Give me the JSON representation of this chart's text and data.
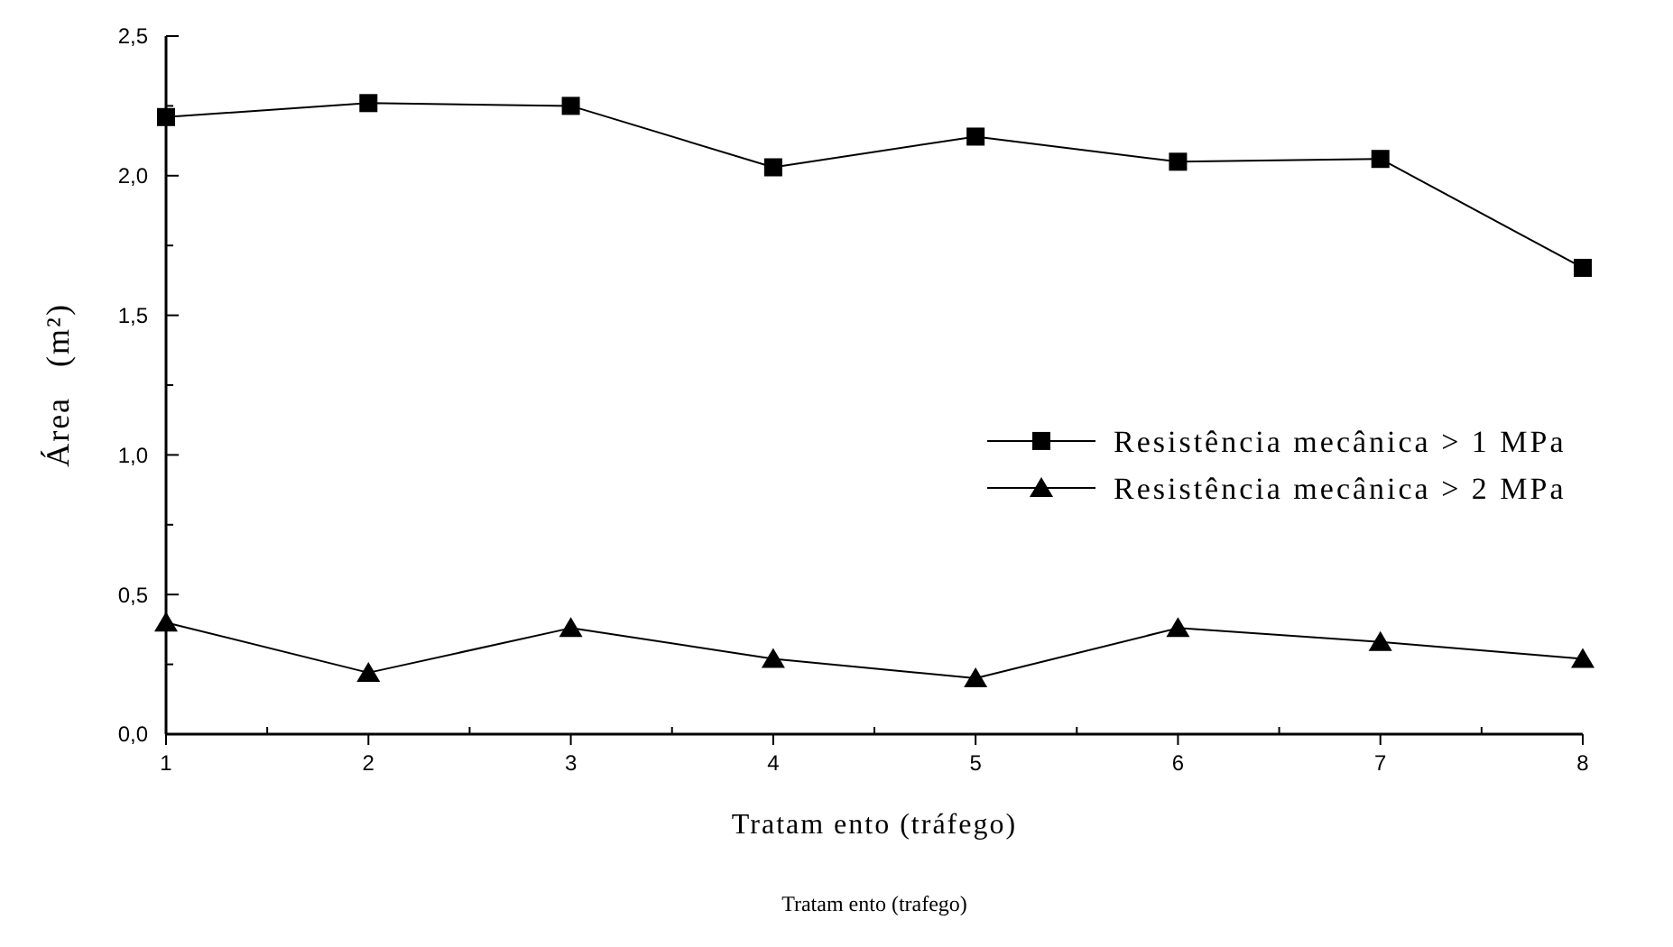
{
  "chart_data": {
    "type": "line",
    "xlabel": "Tratam ento (tráfego)",
    "ylabel": "Área   (m²)",
    "x": [
      1,
      2,
      3,
      4,
      5,
      6,
      7,
      8
    ],
    "series": [
      {
        "name": "Resistência mecânica > 1 MPa",
        "color": "#000000",
        "marker": "square",
        "values": [
          2.21,
          2.26,
          2.25,
          2.03,
          2.14,
          2.05,
          2.06,
          1.67
        ]
      },
      {
        "name": "Resistência mecânica > 2 MPa",
        "color": "#000000",
        "marker": "triangle",
        "values": [
          0.4,
          0.22,
          0.38,
          0.27,
          0.2,
          0.38,
          0.33,
          0.27
        ]
      }
    ],
    "xlim": [
      1,
      8
    ],
    "xticks": [
      1,
      2,
      3,
      4,
      5,
      6,
      7,
      8
    ],
    "ylim": [
      0,
      2.5
    ],
    "yticks": [
      {
        "value": 0,
        "label": "0,0"
      },
      {
        "value": 0.5,
        "label": "0,5"
      },
      {
        "value": 1,
        "label": "1,0"
      },
      {
        "value": 1.5,
        "label": "1,5"
      },
      {
        "value": 2,
        "label": "2,0"
      },
      {
        "value": 2.5,
        "label": "2,5"
      }
    ],
    "grid": false,
    "legend": "right",
    "line_style": "solid",
    "annotations": [
      "Tratam ento (trafego)"
    ]
  }
}
